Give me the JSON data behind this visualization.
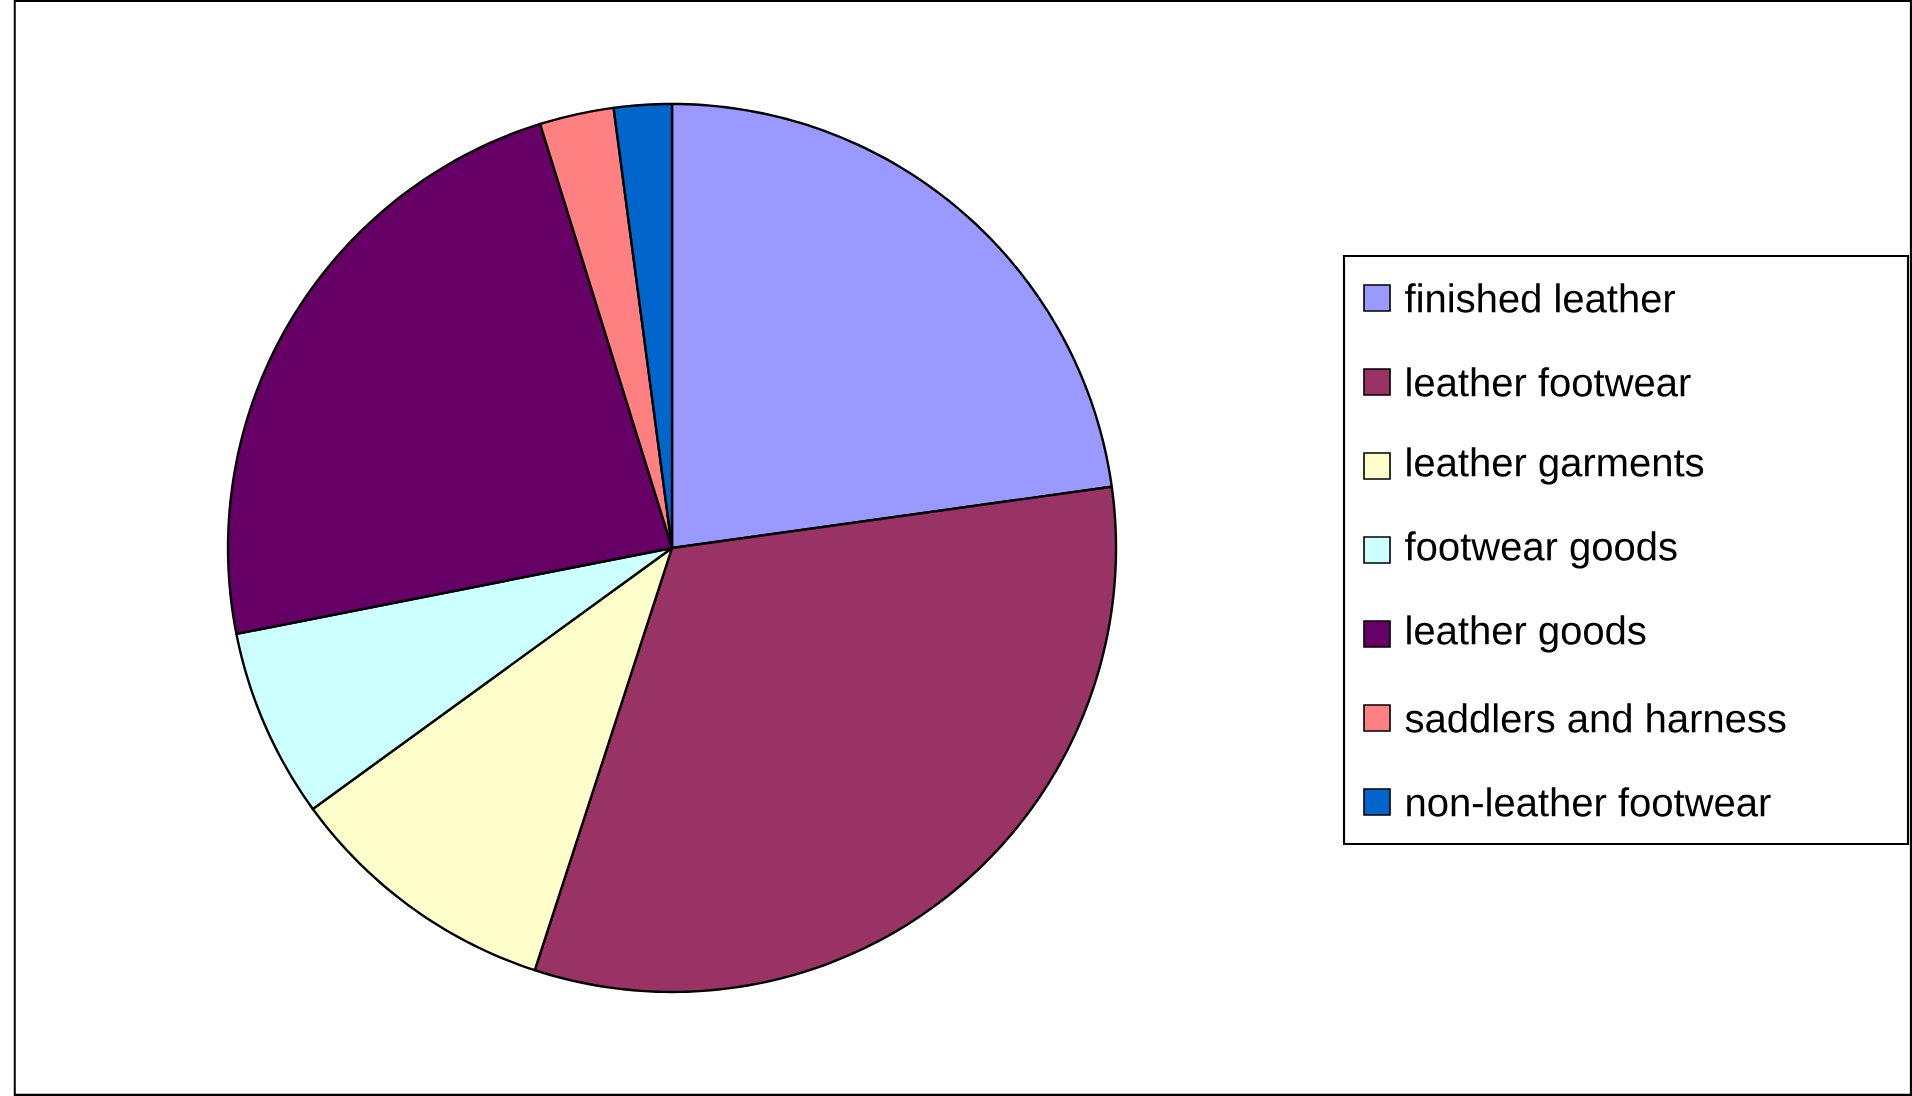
{
  "chart_data": {
    "type": "pie",
    "categories": [
      "finished leather",
      "leather footwear",
      "leather garments",
      "footwear goods",
      "leather goods",
      "saddlers and harness",
      "non-leather footwear"
    ],
    "values": [
      22.8,
      32.2,
      10.0,
      6.9,
      23.3,
      2.7,
      2.1
    ],
    "colors": [
      "#9999ff",
      "#993366",
      "#ffffcc",
      "#ccffff",
      "#660066",
      "#ff8080",
      "#0066cc"
    ],
    "legend": "right"
  }
}
